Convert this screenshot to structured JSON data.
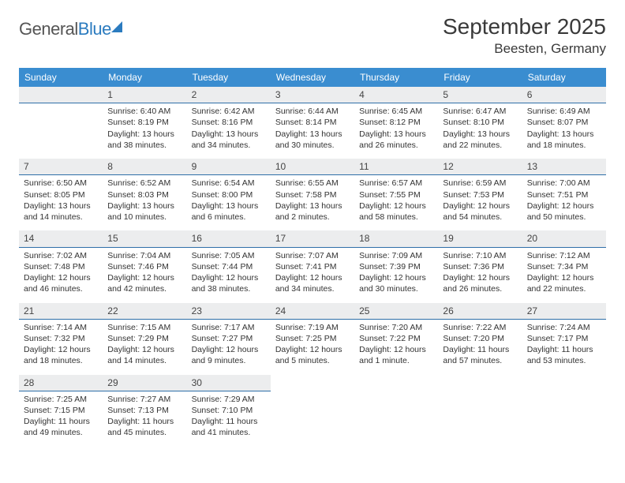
{
  "logo": {
    "part1": "General",
    "part2": "Blue"
  },
  "title": "September 2025",
  "location": "Beesten, Germany",
  "colors": {
    "header_bg": "#3a8dd0",
    "header_text": "#ffffff",
    "daynum_bg": "#ecedee",
    "daynum_border": "#2e6fa8",
    "text": "#333333",
    "logo_gray": "#555555",
    "logo_blue": "#2b7bbf"
  },
  "day_names": [
    "Sunday",
    "Monday",
    "Tuesday",
    "Wednesday",
    "Thursday",
    "Friday",
    "Saturday"
  ],
  "weeks": [
    [
      {
        "n": "",
        "lines": []
      },
      {
        "n": "1",
        "lines": [
          "Sunrise: 6:40 AM",
          "Sunset: 8:19 PM",
          "Daylight: 13 hours",
          "and 38 minutes."
        ]
      },
      {
        "n": "2",
        "lines": [
          "Sunrise: 6:42 AM",
          "Sunset: 8:16 PM",
          "Daylight: 13 hours",
          "and 34 minutes."
        ]
      },
      {
        "n": "3",
        "lines": [
          "Sunrise: 6:44 AM",
          "Sunset: 8:14 PM",
          "Daylight: 13 hours",
          "and 30 minutes."
        ]
      },
      {
        "n": "4",
        "lines": [
          "Sunrise: 6:45 AM",
          "Sunset: 8:12 PM",
          "Daylight: 13 hours",
          "and 26 minutes."
        ]
      },
      {
        "n": "5",
        "lines": [
          "Sunrise: 6:47 AM",
          "Sunset: 8:10 PM",
          "Daylight: 13 hours",
          "and 22 minutes."
        ]
      },
      {
        "n": "6",
        "lines": [
          "Sunrise: 6:49 AM",
          "Sunset: 8:07 PM",
          "Daylight: 13 hours",
          "and 18 minutes."
        ]
      }
    ],
    [
      {
        "n": "7",
        "lines": [
          "Sunrise: 6:50 AM",
          "Sunset: 8:05 PM",
          "Daylight: 13 hours",
          "and 14 minutes."
        ]
      },
      {
        "n": "8",
        "lines": [
          "Sunrise: 6:52 AM",
          "Sunset: 8:03 PM",
          "Daylight: 13 hours",
          "and 10 minutes."
        ]
      },
      {
        "n": "9",
        "lines": [
          "Sunrise: 6:54 AM",
          "Sunset: 8:00 PM",
          "Daylight: 13 hours",
          "and 6 minutes."
        ]
      },
      {
        "n": "10",
        "lines": [
          "Sunrise: 6:55 AM",
          "Sunset: 7:58 PM",
          "Daylight: 13 hours",
          "and 2 minutes."
        ]
      },
      {
        "n": "11",
        "lines": [
          "Sunrise: 6:57 AM",
          "Sunset: 7:55 PM",
          "Daylight: 12 hours",
          "and 58 minutes."
        ]
      },
      {
        "n": "12",
        "lines": [
          "Sunrise: 6:59 AM",
          "Sunset: 7:53 PM",
          "Daylight: 12 hours",
          "and 54 minutes."
        ]
      },
      {
        "n": "13",
        "lines": [
          "Sunrise: 7:00 AM",
          "Sunset: 7:51 PM",
          "Daylight: 12 hours",
          "and 50 minutes."
        ]
      }
    ],
    [
      {
        "n": "14",
        "lines": [
          "Sunrise: 7:02 AM",
          "Sunset: 7:48 PM",
          "Daylight: 12 hours",
          "and 46 minutes."
        ]
      },
      {
        "n": "15",
        "lines": [
          "Sunrise: 7:04 AM",
          "Sunset: 7:46 PM",
          "Daylight: 12 hours",
          "and 42 minutes."
        ]
      },
      {
        "n": "16",
        "lines": [
          "Sunrise: 7:05 AM",
          "Sunset: 7:44 PM",
          "Daylight: 12 hours",
          "and 38 minutes."
        ]
      },
      {
        "n": "17",
        "lines": [
          "Sunrise: 7:07 AM",
          "Sunset: 7:41 PM",
          "Daylight: 12 hours",
          "and 34 minutes."
        ]
      },
      {
        "n": "18",
        "lines": [
          "Sunrise: 7:09 AM",
          "Sunset: 7:39 PM",
          "Daylight: 12 hours",
          "and 30 minutes."
        ]
      },
      {
        "n": "19",
        "lines": [
          "Sunrise: 7:10 AM",
          "Sunset: 7:36 PM",
          "Daylight: 12 hours",
          "and 26 minutes."
        ]
      },
      {
        "n": "20",
        "lines": [
          "Sunrise: 7:12 AM",
          "Sunset: 7:34 PM",
          "Daylight: 12 hours",
          "and 22 minutes."
        ]
      }
    ],
    [
      {
        "n": "21",
        "lines": [
          "Sunrise: 7:14 AM",
          "Sunset: 7:32 PM",
          "Daylight: 12 hours",
          "and 18 minutes."
        ]
      },
      {
        "n": "22",
        "lines": [
          "Sunrise: 7:15 AM",
          "Sunset: 7:29 PM",
          "Daylight: 12 hours",
          "and 14 minutes."
        ]
      },
      {
        "n": "23",
        "lines": [
          "Sunrise: 7:17 AM",
          "Sunset: 7:27 PM",
          "Daylight: 12 hours",
          "and 9 minutes."
        ]
      },
      {
        "n": "24",
        "lines": [
          "Sunrise: 7:19 AM",
          "Sunset: 7:25 PM",
          "Daylight: 12 hours",
          "and 5 minutes."
        ]
      },
      {
        "n": "25",
        "lines": [
          "Sunrise: 7:20 AM",
          "Sunset: 7:22 PM",
          "Daylight: 12 hours",
          "and 1 minute."
        ]
      },
      {
        "n": "26",
        "lines": [
          "Sunrise: 7:22 AM",
          "Sunset: 7:20 PM",
          "Daylight: 11 hours",
          "and 57 minutes."
        ]
      },
      {
        "n": "27",
        "lines": [
          "Sunrise: 7:24 AM",
          "Sunset: 7:17 PM",
          "Daylight: 11 hours",
          "and 53 minutes."
        ]
      }
    ],
    [
      {
        "n": "28",
        "lines": [
          "Sunrise: 7:25 AM",
          "Sunset: 7:15 PM",
          "Daylight: 11 hours",
          "and 49 minutes."
        ]
      },
      {
        "n": "29",
        "lines": [
          "Sunrise: 7:27 AM",
          "Sunset: 7:13 PM",
          "Daylight: 11 hours",
          "and 45 minutes."
        ]
      },
      {
        "n": "30",
        "lines": [
          "Sunrise: 7:29 AM",
          "Sunset: 7:10 PM",
          "Daylight: 11 hours",
          "and 41 minutes."
        ]
      },
      {
        "n": "",
        "lines": [],
        "blank": true
      },
      {
        "n": "",
        "lines": [],
        "blank": true
      },
      {
        "n": "",
        "lines": [],
        "blank": true
      },
      {
        "n": "",
        "lines": [],
        "blank": true
      }
    ]
  ]
}
